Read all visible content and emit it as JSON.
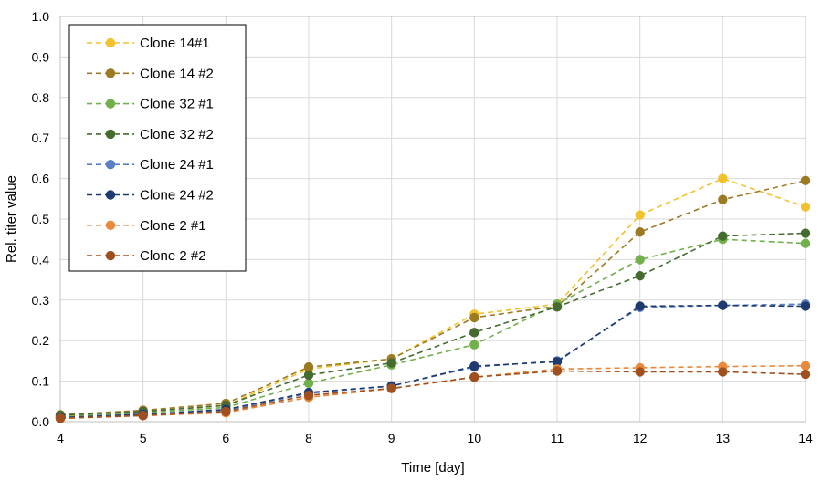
{
  "chart_data": {
    "type": "line",
    "title": "",
    "xlabel": "Time [day]",
    "ylabel": "Rel. titer value",
    "xlim": [
      4,
      14
    ],
    "ylim": [
      0,
      1.0
    ],
    "x_ticks": [
      "4",
      "5",
      "6",
      "8",
      "9",
      "10",
      "11",
      "12",
      "13",
      "14"
    ],
    "y_ticks": [
      "0.0",
      "0.1",
      "0.2",
      "0.3",
      "0.4",
      "0.5",
      "0.6",
      "0.7",
      "0.8",
      "0.9",
      "1.0"
    ],
    "grid": true,
    "legend_position": "top-left",
    "x": [
      4,
      5,
      6,
      8,
      9,
      10,
      11,
      12,
      13,
      14
    ],
    "series": [
      {
        "name": "Clone 14#1",
        "color": "#F2C12E",
        "values": [
          0.015,
          0.025,
          0.04,
          0.13,
          0.155,
          0.265,
          0.29,
          0.51,
          0.6,
          0.53
        ]
      },
      {
        "name": "Clone 14 #2",
        "color": "#9C7A24",
        "values": [
          0.017,
          0.028,
          0.045,
          0.135,
          0.155,
          0.257,
          0.285,
          0.468,
          0.548,
          0.595
        ]
      },
      {
        "name": "Clone 32 #1",
        "color": "#72B04E",
        "values": [
          0.012,
          0.022,
          0.035,
          0.095,
          0.14,
          0.19,
          0.29,
          0.4,
          0.45,
          0.44
        ]
      },
      {
        "name": "Clone 32 #2",
        "color": "#456B30",
        "values": [
          0.016,
          0.025,
          0.04,
          0.115,
          0.145,
          0.22,
          0.283,
          0.36,
          0.458,
          0.465
        ]
      },
      {
        "name": "Clone 24 #1",
        "color": "#5B7FC4",
        "values": [
          0.01,
          0.018,
          0.028,
          0.07,
          0.088,
          0.135,
          0.15,
          0.282,
          0.287,
          0.29
        ]
      },
      {
        "name": "Clone 24 #2",
        "color": "#1F3A6E",
        "values": [
          0.01,
          0.018,
          0.03,
          0.072,
          0.088,
          0.137,
          0.148,
          0.285,
          0.287,
          0.285
        ]
      },
      {
        "name": "Clone 2 #1",
        "color": "#E88A3C",
        "values": [
          0.008,
          0.015,
          0.022,
          0.06,
          0.082,
          0.11,
          0.13,
          0.133,
          0.136,
          0.138
        ]
      },
      {
        "name": "Clone 2 #2",
        "color": "#A0501E",
        "values": [
          0.008,
          0.015,
          0.025,
          0.065,
          0.082,
          0.11,
          0.125,
          0.123,
          0.123,
          0.117
        ]
      }
    ]
  }
}
